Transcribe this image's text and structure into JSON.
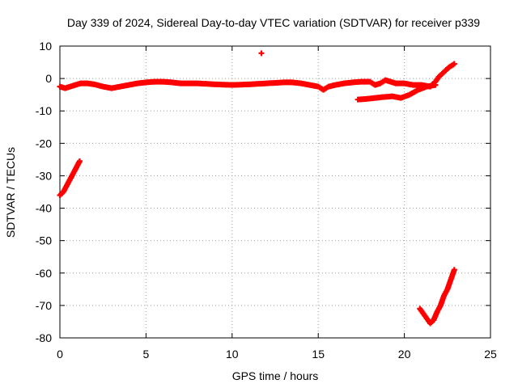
{
  "chart_data": {
    "type": "scatter",
    "title": "Day 339 of 2024, Sidereal Day-to-day VTEC variation (SDTVAR) for receiver p339",
    "xlabel": "GPS time / hours",
    "ylabel": "SDTVAR / TECUs",
    "xlim": [
      0,
      25
    ],
    "ylim": [
      -80,
      10
    ],
    "xticks": [
      "0",
      "5",
      "10",
      "15",
      "20",
      "25"
    ],
    "yticks": [
      "10",
      "0",
      "-10",
      "-20",
      "-30",
      "-40",
      "-50",
      "-60",
      "-70",
      "-80"
    ],
    "grid": true,
    "marker_color": "#ff0000",
    "series": [
      {
        "name": "main-track",
        "x": [
          0.0,
          0.3,
          0.6,
          0.9,
          1.2,
          1.6,
          2.0,
          2.5,
          3.0,
          3.5,
          4.0,
          4.5,
          5.0,
          5.5,
          6.0,
          6.5,
          7.0,
          7.5,
          8.0,
          9.0,
          10.0,
          11.0,
          12.0,
          13.0,
          13.5,
          14.0,
          14.5,
          15.0,
          15.3,
          15.6,
          16.0,
          16.5,
          17.0,
          17.5,
          18.0,
          18.3,
          18.6,
          18.9,
          19.2,
          19.5,
          20.0,
          20.5,
          21.0,
          21.5,
          21.8,
          22.0,
          22.3,
          22.6,
          22.9
        ],
        "y": [
          -2.5,
          -3.0,
          -2.5,
          -2.0,
          -1.5,
          -1.5,
          -1.8,
          -2.5,
          -3.0,
          -2.5,
          -2.0,
          -1.5,
          -1.2,
          -1.0,
          -1.0,
          -1.2,
          -1.5,
          -1.5,
          -1.5,
          -1.8,
          -2.0,
          -1.8,
          -1.5,
          -1.2,
          -1.2,
          -1.5,
          -2.0,
          -2.5,
          -3.5,
          -2.5,
          -2.0,
          -1.5,
          -1.2,
          -1.0,
          -1.0,
          -2.0,
          -1.5,
          -0.5,
          -1.0,
          -1.5,
          -1.5,
          -2.0,
          -2.0,
          -2.5,
          -1.0,
          0.5,
          2.0,
          3.5,
          4.5
        ]
      },
      {
        "name": "lower-track",
        "x": [
          17.3,
          17.8,
          18.3,
          18.8,
          19.3,
          19.8,
          20.3,
          20.8,
          21.3,
          21.8
        ],
        "y": [
          -6.5,
          -6.3,
          -6.0,
          -5.7,
          -5.5,
          -6.0,
          -5.0,
          -3.5,
          -2.5,
          -2.0
        ]
      },
      {
        "name": "early-drop",
        "x": [
          0.0,
          0.2,
          0.4,
          0.6,
          0.8,
          1.0,
          1.15
        ],
        "y": [
          -36.0,
          -35.0,
          -33.0,
          -31.0,
          -29.0,
          -27.0,
          -25.5
        ]
      },
      {
        "name": "late-dip",
        "x": [
          20.9,
          21.1,
          21.3,
          21.5,
          21.7,
          21.9,
          22.1,
          22.3,
          22.5,
          22.7,
          22.9
        ],
        "y": [
          -71.0,
          -72.5,
          -74.0,
          -75.5,
          -74.5,
          -72.0,
          -70.0,
          -67.0,
          -65.0,
          -62.0,
          -59.0
        ]
      },
      {
        "name": "outlier",
        "x": [
          11.7
        ],
        "y": [
          7.8
        ]
      }
    ]
  }
}
